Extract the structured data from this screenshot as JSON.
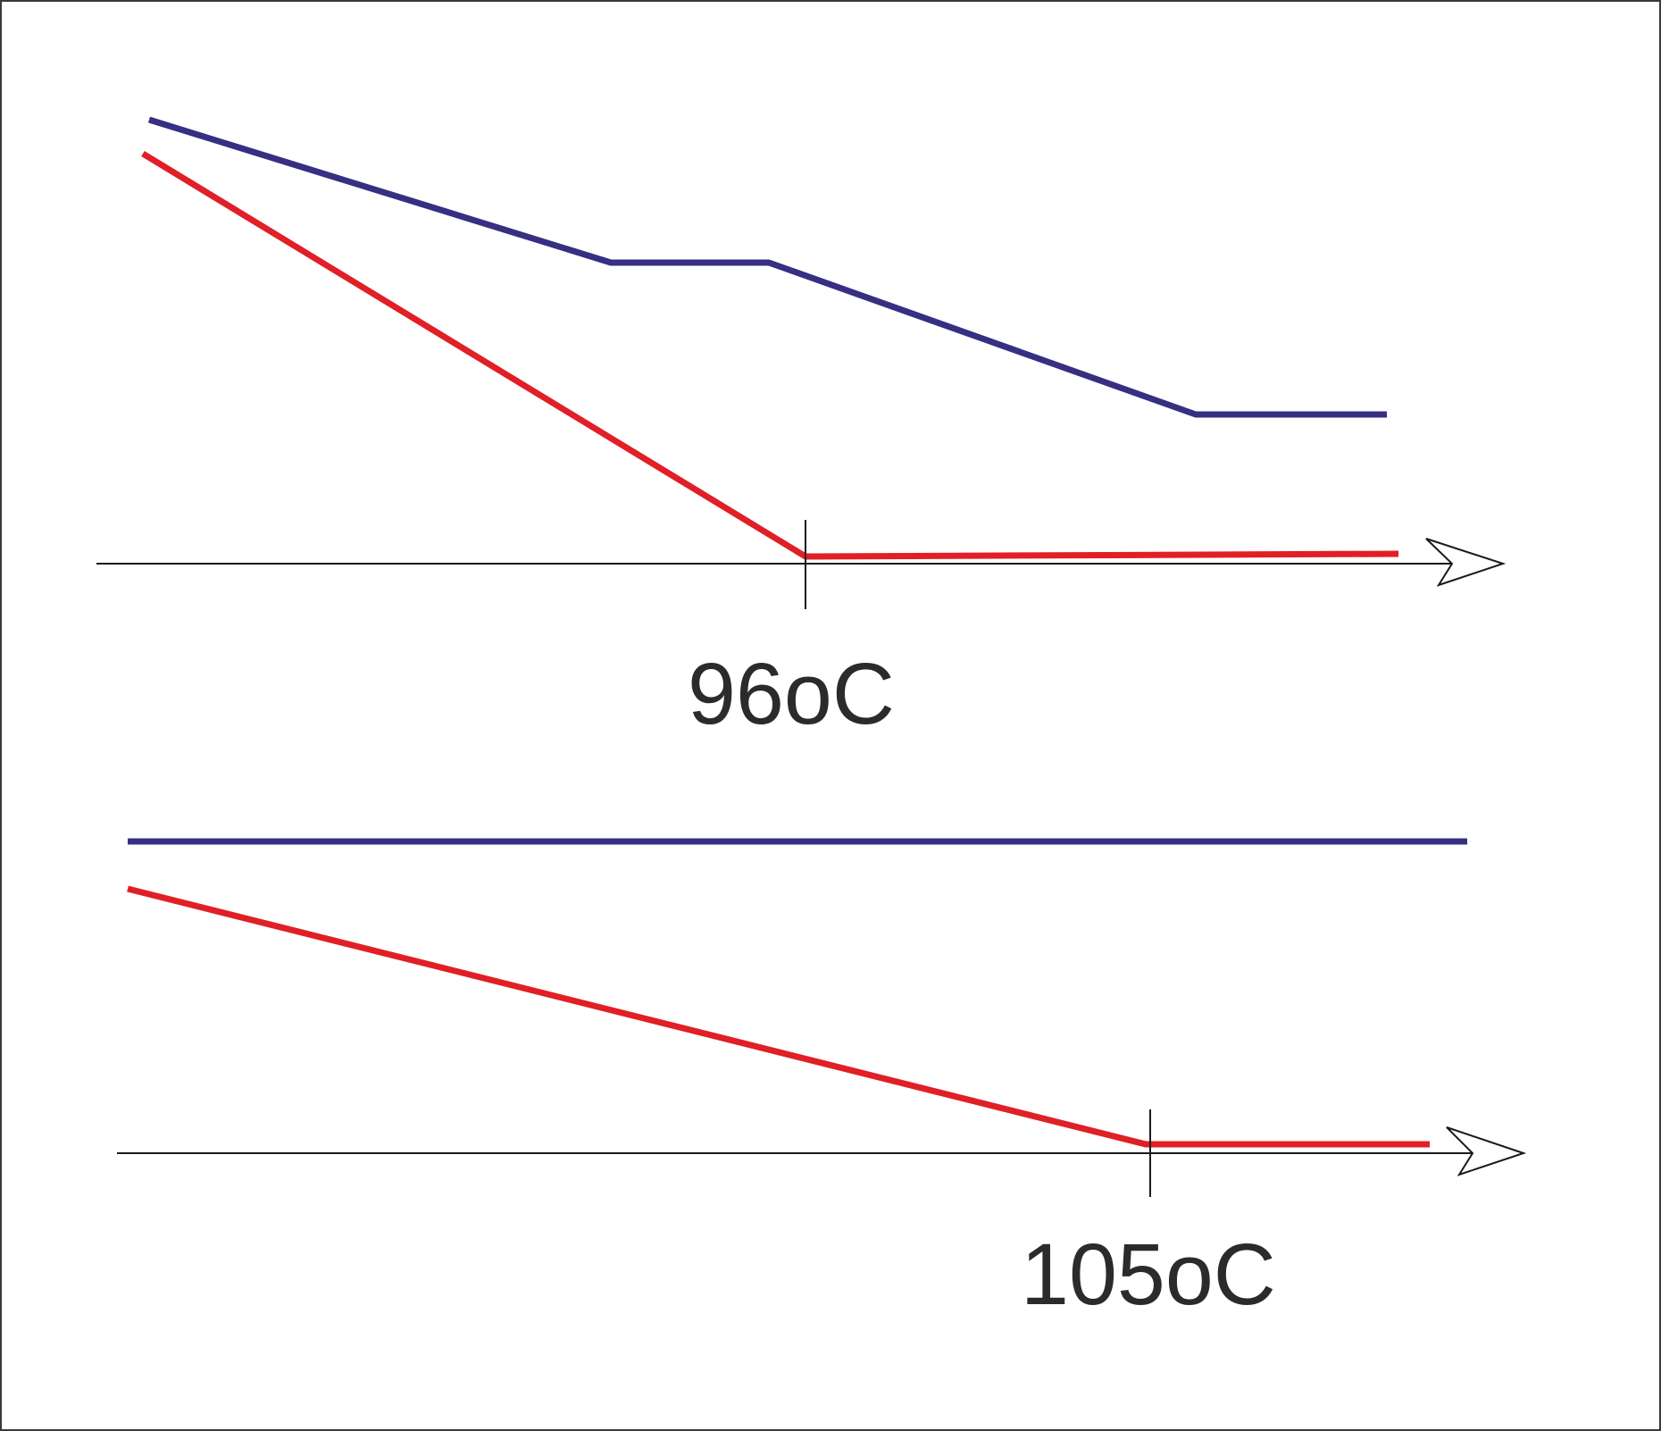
{
  "colors": {
    "frame": "#3a3a3a",
    "axis": "#1a1a1a",
    "upper_line": "#362f82",
    "lower_line": "#e11f26",
    "label": "#2b2b2b"
  },
  "panels": [
    {
      "marked_temperature_label": "96oC",
      "upper_line_color": "#362f82",
      "lower_line_color": "#e11f26"
    },
    {
      "marked_temperature_label": "105oC",
      "upper_line_color": "#362f82",
      "lower_line_color": "#e11f26"
    }
  ]
}
